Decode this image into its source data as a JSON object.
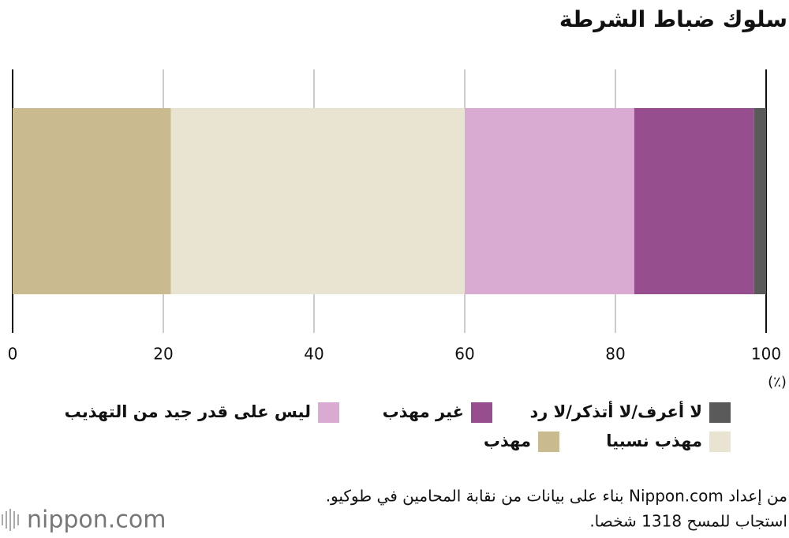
{
  "chart_data": {
    "type": "bar",
    "title": "سلوك ضباط الشرطة",
    "series": [
      {
        "name": "مهذب",
        "color": "#c9bb8f",
        "values": [
          21
        ]
      },
      {
        "name": "مهذب نسبيا",
        "color": "#e9e3d2",
        "values": [
          39
        ]
      },
      {
        "name": "ليس على قدر جيد من التهذيب",
        "color": "#d9aad2",
        "values": [
          22.5
        ]
      },
      {
        "name": "غير مهذب",
        "color": "#964e8f",
        "values": [
          15.9
        ]
      },
      {
        "name": "لا أعرف/لا أتذكر/لا رد",
        "color": "#5a5a5a",
        "values": [
          1.6
        ]
      }
    ],
    "xlim": [
      0,
      100
    ],
    "xticks": [
      0,
      20,
      40,
      60,
      80,
      100
    ],
    "x_unit": "(٪)",
    "grid": true,
    "notes": [
      "من إعداد Nippon.com بناء على بيانات من نقابة المحامين في طوكيو.",
      "استجاب للمسح 1318 شخصا."
    ],
    "logo": "nippon.com"
  }
}
